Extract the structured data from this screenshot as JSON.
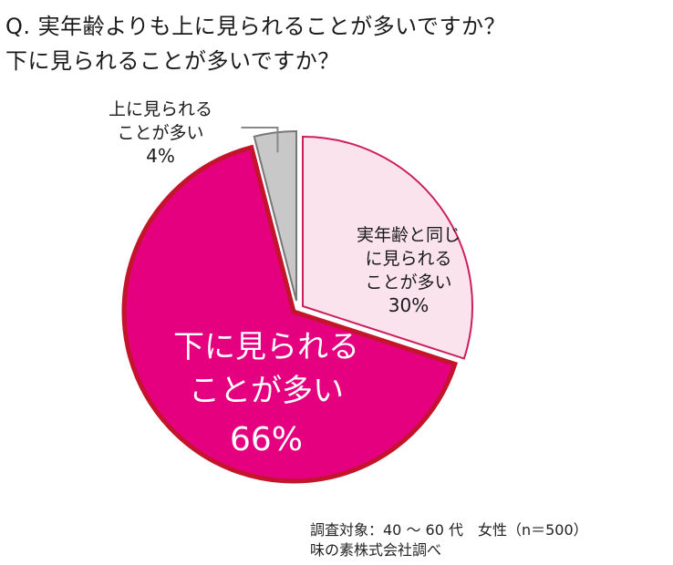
{
  "chart_data": {
    "type": "pie",
    "title": "Q. 実年齢よりも上に見られることが多いですか？\n下に見られることが多いですか？",
    "slices": [
      {
        "label": [
          "実年齢と同じ",
          "に見られる",
          "ことが多い"
        ],
        "value": 30,
        "value_label": "30%",
        "color": "#fbe3ee",
        "stroke": "#cc1f5a",
        "text_color": "#1a1a1a"
      },
      {
        "label": [
          "下に見られる",
          "ことが多い"
        ],
        "value": 66,
        "value_label": "66%",
        "color": "#e4007f",
        "stroke": "#c4142c",
        "text_color": "#ffffff"
      },
      {
        "label": [
          "上に見られる",
          "ことが多い"
        ],
        "value": 4,
        "value_label": "4%",
        "color": "#c8c8c8",
        "stroke": "#777777",
        "text_color": "#1a1a1a"
      }
    ],
    "start_angle_deg": 0,
    "direction": "clockwise",
    "legend": "none",
    "footnote": [
      "調査対象：40 ～ 60 代　女性（n＝500）",
      "味の素株式会社調べ"
    ]
  }
}
